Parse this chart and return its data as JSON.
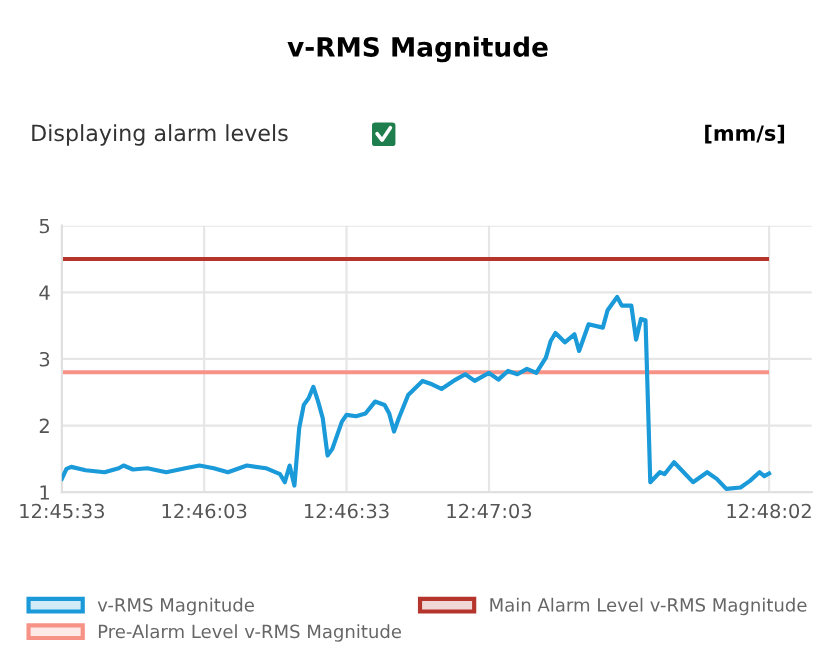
{
  "chart_data": {
    "type": "line",
    "title": "v-RMS Magnitude",
    "ylabel": "[mm/s]",
    "annotations": [
      "Displaying alarm levels"
    ],
    "x": [
      12.75917,
      12.75944,
      12.75972,
      12.76056,
      12.76167,
      12.7625,
      12.76278,
      12.76333,
      12.76417,
      12.76528,
      12.76639,
      12.76722,
      12.76806,
      12.76889,
      12.77,
      12.77111,
      12.77194,
      12.77222,
      12.7725,
      12.77278,
      12.77306,
      12.77333,
      12.77361,
      12.77389,
      12.77417,
      12.77444,
      12.77472,
      12.775,
      12.77556,
      12.77583,
      12.77639,
      12.77694,
      12.7775,
      12.77806,
      12.77833,
      12.77861,
      12.77889,
      12.77944,
      12.78028,
      12.78083,
      12.78139,
      12.78222,
      12.78278,
      12.78333,
      12.78417,
      12.78472,
      12.78528,
      12.78583,
      12.78639,
      12.78694,
      12.7875,
      12.78778,
      12.78806,
      12.78861,
      12.78917,
      12.78944,
      12.79,
      12.79083,
      12.79111,
      12.79167,
      12.79194,
      12.7925,
      12.79278,
      12.79306,
      12.79333,
      12.79361,
      12.79417,
      12.79444,
      12.795,
      12.79556,
      12.79611,
      12.79694,
      12.7975,
      12.79806,
      12.79889,
      12.79944,
      12.8,
      12.80028,
      12.80056
    ],
    "series": [
      {
        "name": "v-RMS Magnitude",
        "color": "#1a9ad9",
        "values": [
          1.2,
          1.35,
          1.38,
          1.33,
          1.3,
          1.36,
          1.4,
          1.34,
          1.36,
          1.3,
          1.36,
          1.4,
          1.36,
          1.3,
          1.4,
          1.36,
          1.27,
          1.15,
          1.4,
          1.1,
          1.96,
          2.31,
          2.41,
          2.58,
          2.36,
          2.11,
          1.55,
          1.65,
          2.06,
          2.16,
          2.14,
          2.18,
          2.36,
          2.31,
          2.18,
          1.91,
          2.11,
          2.46,
          2.67,
          2.62,
          2.55,
          2.69,
          2.77,
          2.67,
          2.79,
          2.69,
          2.82,
          2.77,
          2.85,
          2.79,
          3.02,
          3.27,
          3.39,
          3.25,
          3.37,
          3.12,
          3.52,
          3.47,
          3.73,
          3.93,
          3.8,
          3.8,
          3.29,
          3.6,
          3.58,
          1.15,
          1.3,
          1.27,
          1.45,
          1.3,
          1.15,
          1.3,
          1.2,
          1.05,
          1.07,
          1.17,
          1.3,
          1.24,
          1.28
        ]
      }
    ],
    "ref_lines": [
      {
        "axis": "y",
        "value": 2.8,
        "label": "Pre-Alarm Level v-RMS Magnitude",
        "color": "#f79287"
      },
      {
        "axis": "y",
        "value": 4.5,
        "label": "Main Alarm Level v-RMS Magnitude",
        "color": "#b5342c"
      }
    ],
    "xlim": [
      12.75917,
      12.80306
    ],
    "ylim": [
      1,
      5
    ],
    "xticks": [
      {
        "value": 12.75917,
        "label": "12:45:33"
      },
      {
        "value": 12.7675,
        "label": "12:46:03"
      },
      {
        "value": 12.77583,
        "label": "12:46:33"
      },
      {
        "value": 12.78417,
        "label": "12:47:03"
      },
      {
        "value": 12.80056,
        "label": "12:48:02"
      }
    ],
    "yticks": [
      1,
      2,
      3,
      4,
      5
    ],
    "grid": true,
    "legend": "bottom",
    "marker": "none",
    "line_style": "solid"
  }
}
